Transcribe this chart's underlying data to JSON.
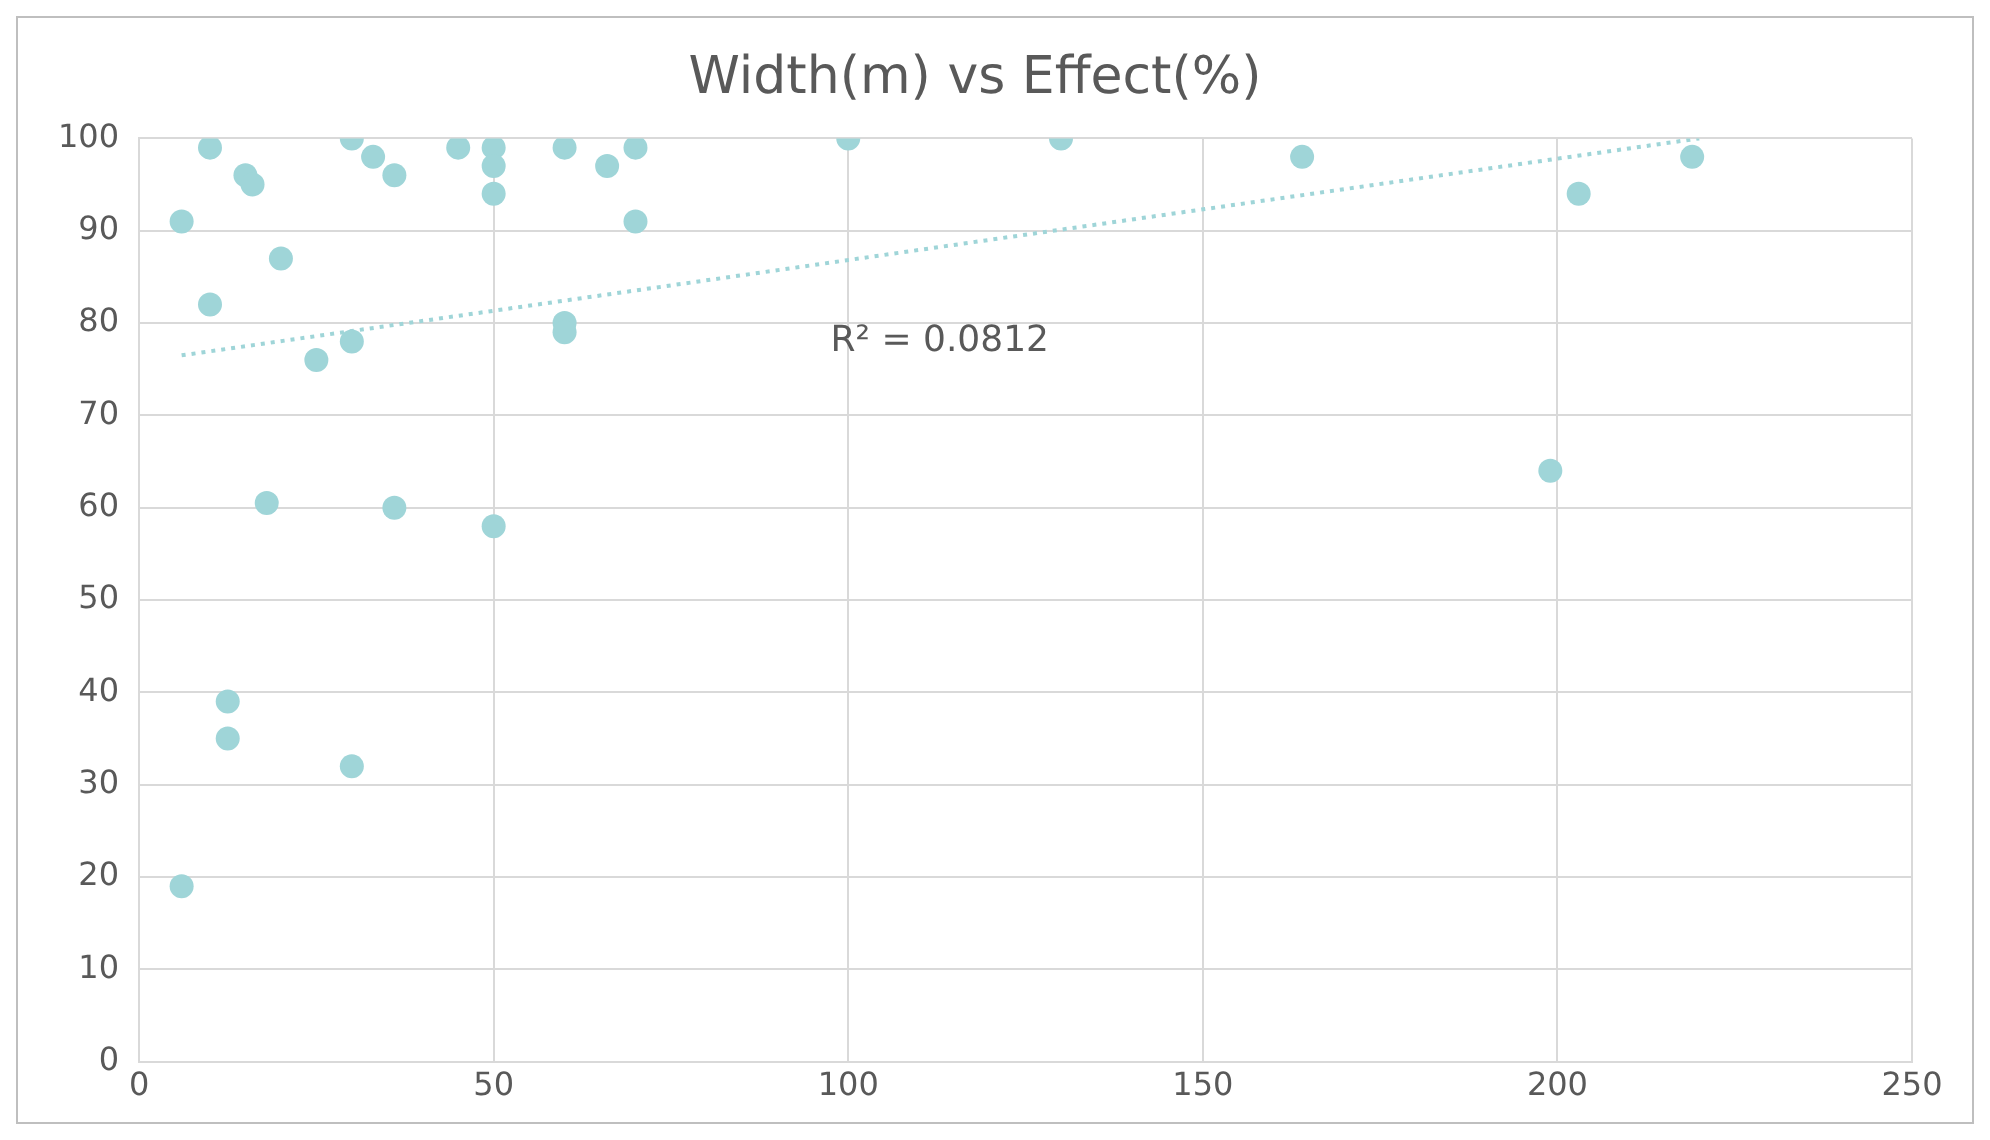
{
  "chart_data": {
    "type": "scatter",
    "title": "Width(m) vs Effect(%)",
    "marker": "circle",
    "grid": true,
    "legend": false,
    "xlim": [
      0,
      250
    ],
    "xticks": [
      0,
      50,
      100,
      150,
      200,
      250
    ],
    "ylim": [
      0,
      100
    ],
    "yticks": [
      0,
      10,
      20,
      30,
      40,
      50,
      60,
      70,
      80,
      90,
      100
    ],
    "annotations": [
      "R² = 0.0812"
    ],
    "series": [
      {
        "color": "#9fd5d8",
        "x": [
          6,
          6,
          10,
          10,
          12.5,
          12.5,
          15,
          16,
          18,
          20,
          25,
          30,
          30,
          30,
          33,
          36,
          36,
          45,
          50,
          50,
          50,
          50,
          60,
          60,
          60,
          66,
          70,
          70,
          100,
          130,
          164,
          199,
          203,
          219
        ],
        "values": [
          19,
          91,
          99,
          82,
          39,
          35,
          96,
          95,
          60.5,
          87,
          76,
          100,
          78,
          32,
          98,
          96,
          60,
          99,
          99,
          97,
          94,
          58,
          99,
          80,
          79,
          97,
          99,
          91,
          100,
          100,
          98,
          64,
          94,
          98
        ]
      },
      {
        "type": "line",
        "color": "#9fd5d8",
        "line_style": "dotted",
        "marker": "none",
        "x": [
          6,
          220
        ],
        "values": [
          76.5,
          100
        ]
      }
    ]
  }
}
